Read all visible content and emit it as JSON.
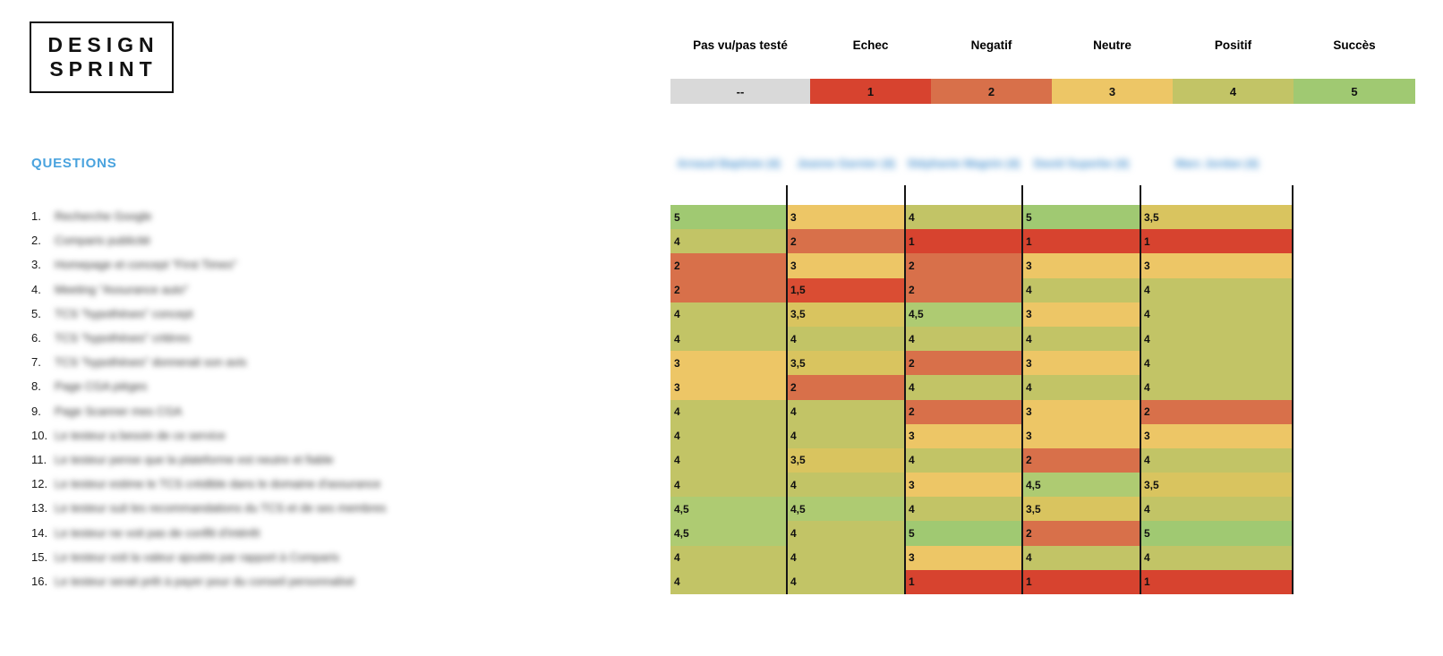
{
  "logo": {
    "line1": "DESIGN",
    "line2": "SPRINT"
  },
  "colors": {
    "title_blue": "#4AA3DE",
    "name_blue": "#4D94D0",
    "line_black": "#161616"
  },
  "value_colors": {
    "--": "#D9D9D9",
    "1": "#D7432F",
    "1,5": "#DA4D33",
    "2": "#D8704A",
    "3": "#EDC666",
    "3,5": "#D9C45F",
    "4": "#C2C466",
    "4,5": "#AECB72",
    "5": "#A0C972"
  },
  "legend": {
    "items": [
      {
        "label": "Pas vu/pas testé",
        "value": "--"
      },
      {
        "label": "Echec",
        "value": "1"
      },
      {
        "label": "Negatif",
        "value": "2"
      },
      {
        "label": "Neutre",
        "value": "3"
      },
      {
        "label": "Positif",
        "value": "4"
      },
      {
        "label": "Succès",
        "value": "5"
      }
    ]
  },
  "questions": {
    "title": "QUESTIONS",
    "items": [
      {
        "num": "1.",
        "blurred_text": "Recherche Google"
      },
      {
        "num": "2.",
        "blurred_text": "Comparis publicité"
      },
      {
        "num": "3.",
        "blurred_text": "Homepage et concept \"First Times\""
      },
      {
        "num": "4.",
        "blurred_text": "Meeting \"Assurance auto\""
      },
      {
        "num": "5.",
        "blurred_text": "TCS \"hypothèses\" concept"
      },
      {
        "num": "6.",
        "blurred_text": "TCS \"hypothèses\" critères"
      },
      {
        "num": "7.",
        "blurred_text": "TCS \"hypothèses\" donnerait son avis"
      },
      {
        "num": "8.",
        "blurred_text": "Page CGA pièges"
      },
      {
        "num": "9.",
        "blurred_text": "Page Scanner mes CGA"
      },
      {
        "num": "10.",
        "blurred_text": "Le testeur a besoin de ce service"
      },
      {
        "num": "11.",
        "blurred_text": "Le testeur pense que la plateforme est neutre et fiable"
      },
      {
        "num": "12.",
        "blurred_text": "Le testeur estime le TCS crédible dans le domaine d'assurance"
      },
      {
        "num": "13.",
        "blurred_text": "Le testeur suit les recommandations du TCS et de ses membres"
      },
      {
        "num": "14.",
        "blurred_text": "Le testeur ne voit pas de conflit d'intérêt"
      },
      {
        "num": "15.",
        "blurred_text": "Le testeur voit la valeur ajoutée par rapport à Comparis"
      },
      {
        "num": "16.",
        "blurred_text": "Le testeur serait prêt à payer pour du conseil personnalisé"
      }
    ]
  },
  "table": {
    "columns": [
      {
        "blurred_name": "Arnaud Baptiste (4)"
      },
      {
        "blurred_name": "Jeanne Garnier (4)"
      },
      {
        "blurred_name": "Stéphanie Magnin (4)"
      },
      {
        "blurred_name": "David Superbe (4)"
      },
      {
        "blurred_name": "Marc Jordan (4)"
      }
    ],
    "rows": [
      [
        "5",
        "3",
        "4",
        "5",
        "3,5"
      ],
      [
        "4",
        "2",
        "1",
        "1",
        "1"
      ],
      [
        "2",
        "3",
        "2",
        "3",
        "3"
      ],
      [
        "2",
        "1,5",
        "2",
        "4",
        "4"
      ],
      [
        "4",
        "3,5",
        "4,5",
        "3",
        "4"
      ],
      [
        "4",
        "4",
        "4",
        "4",
        "4"
      ],
      [
        "3",
        "3,5",
        "2",
        "3",
        "4"
      ],
      [
        "3",
        "2",
        "4",
        "4",
        "4"
      ],
      [
        "4",
        "4",
        "2",
        "3",
        "2"
      ],
      [
        "4",
        "4",
        "3",
        "3",
        "3"
      ],
      [
        "4",
        "3,5",
        "4",
        "2",
        "4"
      ],
      [
        "4",
        "4",
        "3",
        "4,5",
        "3,5"
      ],
      [
        "4,5",
        "4,5",
        "4",
        "3,5",
        "4"
      ],
      [
        "4,5",
        "4",
        "5",
        "2",
        "5"
      ],
      [
        "4",
        "4",
        "3",
        "4",
        "4"
      ],
      [
        "4",
        "4",
        "1",
        "1",
        "1"
      ]
    ]
  }
}
